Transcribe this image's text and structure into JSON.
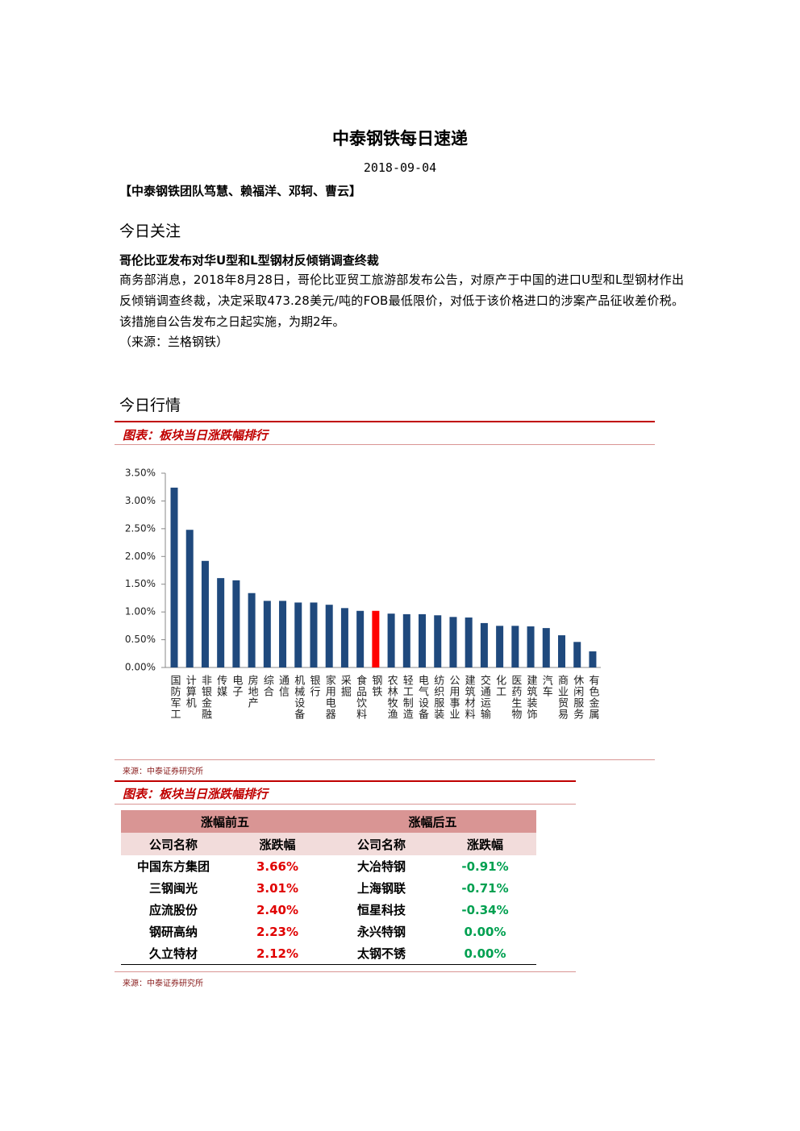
{
  "header": {
    "title": "中泰钢铁每日速递",
    "date": "2018-09-04",
    "authors": "【中泰钢铁团队笃慧、赖福洋、邓轲、曹云】"
  },
  "focus": {
    "heading": "今日关注",
    "headline": "哥伦比亚发布对华U型和L型钢材反倾销调查终裁",
    "body": "商务部消息，2018年8月28日，哥伦比亚贸工旅游部发布公告，对原产于中国的进口U型和L型钢材作出反倾销调查终裁，决定采取473.28美元/吨的FOB最低限价，对低于该价格进口的涉案产品征收差价税。该措施自公告发布之日起实施，为期2年。",
    "source": "（来源：兰格钢铁）"
  },
  "market": {
    "heading": "今日行情",
    "chart_caption": "图表：板块当日涨跌幅排行",
    "chart_source": "来源：中泰证券研究所",
    "table_caption": "图表：板块当日涨跌幅排行",
    "table_source": "来源：中泰证券研究所"
  },
  "chart_data": {
    "type": "bar",
    "categories": [
      "国防军工",
      "计算机",
      "非银金融",
      "传媒",
      "电子",
      "房地产",
      "综合",
      "通信",
      "机械设备",
      "银行",
      "家用电器",
      "采掘",
      "食品饮料",
      "钢铁",
      "农林牧渔",
      "轻工制造",
      "电气设备",
      "纺织服装",
      "公用事业",
      "建筑材料",
      "交通运输",
      "化工",
      "医药生物",
      "建筑装饰",
      "汽车",
      "商业贸易",
      "休闲服务",
      "有色金属"
    ],
    "values": [
      3.24,
      2.48,
      1.92,
      1.61,
      1.57,
      1.34,
      1.2,
      1.2,
      1.17,
      1.17,
      1.13,
      1.07,
      1.02,
      1.02,
      0.97,
      0.96,
      0.96,
      0.94,
      0.91,
      0.9,
      0.8,
      0.75,
      0.75,
      0.74,
      0.71,
      0.58,
      0.46,
      0.29
    ],
    "colors": [
      "#1f497d",
      "#1f497d",
      "#1f497d",
      "#1f497d",
      "#1f497d",
      "#1f497d",
      "#1f497d",
      "#1f497d",
      "#1f497d",
      "#1f497d",
      "#1f497d",
      "#1f497d",
      "#1f497d",
      "#ff0000",
      "#1f497d",
      "#1f497d",
      "#1f497d",
      "#1f497d",
      "#1f497d",
      "#1f497d",
      "#1f497d",
      "#1f497d",
      "#1f497d",
      "#1f497d",
      "#1f497d",
      "#1f497d",
      "#1f497d",
      "#1f497d"
    ],
    "ylim": [
      0,
      3.5
    ],
    "yticks": [
      {
        "value": 0,
        "label": "0.00%"
      },
      {
        "value": 0.5,
        "label": "0.50%"
      },
      {
        "value": 1,
        "label": "1.00%"
      },
      {
        "value": 1.5,
        "label": "1.50%"
      },
      {
        "value": 2,
        "label": "2.00%"
      },
      {
        "value": 2.5,
        "label": "2.50%"
      },
      {
        "value": 3,
        "label": "3.00%"
      },
      {
        "value": 3.5,
        "label": "3.50%"
      }
    ],
    "grid": false
  },
  "table": {
    "groups": [
      "涨幅前五",
      "涨幅后五"
    ],
    "columns": [
      "公司名称",
      "涨跌幅",
      "公司名称",
      "涨跌幅"
    ],
    "rows": [
      [
        "中国东方集团",
        "3.66%",
        "大冶特钢",
        "-0.91%"
      ],
      [
        "三钢闽光",
        "3.01%",
        "上海钢联",
        "-0.71%"
      ],
      [
        "应流股份",
        "2.40%",
        "恒星科技",
        "-0.34%"
      ],
      [
        "钢研高纳",
        "2.23%",
        "永兴特钢",
        "0.00%"
      ],
      [
        "久立特材",
        "2.12%",
        "太钢不锈",
        "0.00%"
      ]
    ]
  }
}
